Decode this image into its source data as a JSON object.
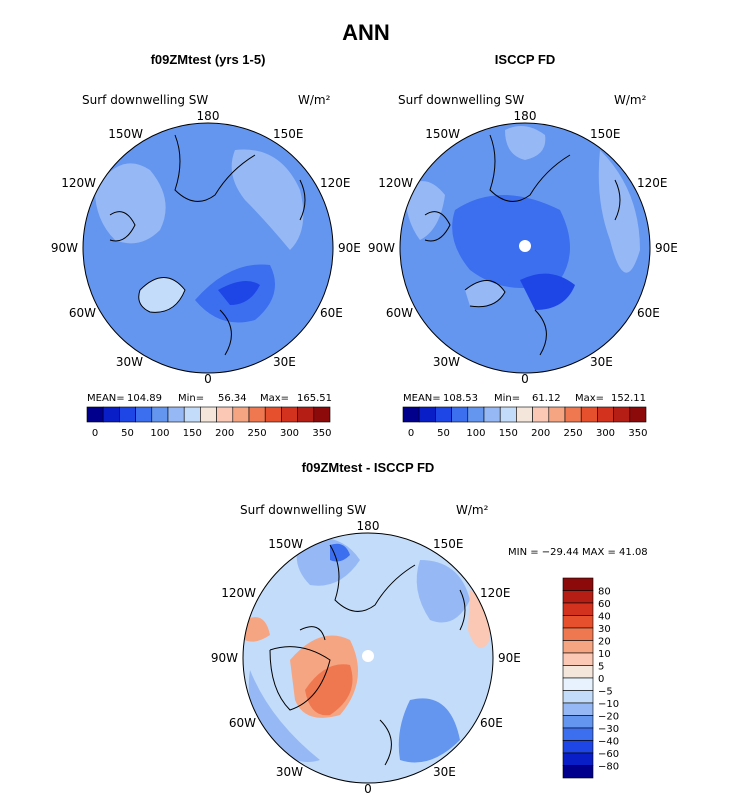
{
  "page_title": "ANN",
  "colors": {
    "seq": [
      "#00008c",
      "#0a1ec8",
      "#1e46e6",
      "#3c6ef0",
      "#6496f0",
      "#96b9f5",
      "#c3dcfa",
      "#f5e6dc",
      "#fac8b4",
      "#f5a582",
      "#f07850",
      "#e6502d",
      "#d2321e",
      "#b41e14",
      "#8c0a0a"
    ],
    "diff": [
      "#00008c",
      "#0a1ec8",
      "#1e46e6",
      "#3c6ef0",
      "#6496f0",
      "#96b9f5",
      "#c3dcfa",
      "#e8f2ff",
      "#f5e6dc",
      "#fac8b4",
      "#f5a582",
      "#f07850",
      "#e6502d",
      "#d2321e",
      "#b41e14",
      "#8c0a0a"
    ]
  },
  "panels": [
    {
      "title": "f09ZMtest (yrs 1-5)",
      "subtitle": "Surf downwelling SW",
      "units": "W/m²",
      "lon_labels": [
        "180",
        "150E",
        "120E",
        "90E",
        "60E",
        "30E",
        "0",
        "30W",
        "60W",
        "90W",
        "120W",
        "150W"
      ],
      "stats": {
        "mean_label": "MEAN=",
        "mean": "104.89",
        "min_label": "Min=",
        "min": "56.34",
        "max_label": "Max=",
        "max": "165.51"
      },
      "colorbar_labels": [
        "0",
        "50",
        "100",
        "150",
        "200",
        "250",
        "300",
        "350"
      ]
    },
    {
      "title": "ISCCP FD",
      "subtitle": "Surf downwelling SW",
      "units": "W/m²",
      "lon_labels": [
        "180",
        "150E",
        "120E",
        "90E",
        "60E",
        "30E",
        "0",
        "30W",
        "60W",
        "90W",
        "120W",
        "150W"
      ],
      "stats": {
        "mean_label": "MEAN=",
        "mean": "108.53",
        "min_label": "Min=",
        "min": "61.12",
        "max_label": "Max=",
        "max": "152.11"
      },
      "colorbar_labels": [
        "0",
        "50",
        "100",
        "150",
        "200",
        "250",
        "300",
        "350"
      ]
    },
    {
      "title": "f09ZMtest - ISCCP FD",
      "subtitle": "Surf downwelling SW",
      "units": "W/m²",
      "lon_labels": [
        "180",
        "150E",
        "120E",
        "90E",
        "60E",
        "30E",
        "0",
        "30W",
        "60W",
        "90W",
        "120W",
        "150W"
      ],
      "stats_text": "MIN = −29.44 MAX =  41.08",
      "colorbar_labels": [
        "80",
        "60",
        "40",
        "30",
        "20",
        "10",
        "5",
        "0",
        "−5",
        "−10",
        "−20",
        "−30",
        "−40",
        "−60",
        "−80"
      ]
    }
  ],
  "chart_data": [
    {
      "type": "heatmap",
      "title": "f09ZMtest (yrs 1-5)",
      "subtitle": "Surf downwelling SW",
      "units": "W/m²",
      "projection": "north polar stereographic",
      "mean": 104.89,
      "min": 56.34,
      "max": 165.51,
      "colorbar_levels": [
        0,
        25,
        50,
        75,
        100,
        125,
        150,
        175,
        200,
        225,
        250,
        275,
        300,
        325,
        350
      ]
    },
    {
      "type": "heatmap",
      "title": "ISCCP FD",
      "subtitle": "Surf downwelling SW",
      "units": "W/m²",
      "projection": "north polar stereographic",
      "mean": 108.53,
      "min": 61.12,
      "max": 152.11,
      "colorbar_levels": [
        0,
        25,
        50,
        75,
        100,
        125,
        150,
        175,
        200,
        225,
        250,
        275,
        300,
        325,
        350
      ]
    },
    {
      "type": "heatmap",
      "title": "f09ZMtest - ISCCP FD",
      "subtitle": "Surf downwelling SW",
      "units": "W/m²",
      "projection": "north polar stereographic",
      "min": -29.44,
      "max": 41.08,
      "colorbar_levels": [
        -80,
        -60,
        -40,
        -30,
        -20,
        -10,
        -5,
        0,
        5,
        10,
        20,
        30,
        40,
        60,
        80
      ]
    }
  ]
}
